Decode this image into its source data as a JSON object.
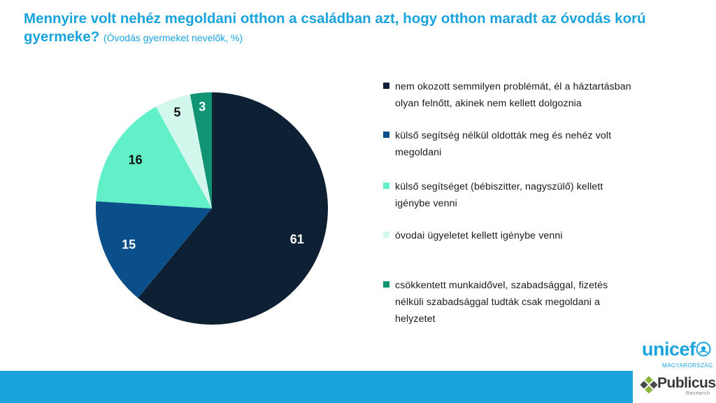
{
  "title": {
    "main": "Mennyire volt nehéz megoldani otthon a családban azt, hogy otthon maradt az óvodás korú gyermeke?",
    "subtitle": "(Óvodás gyermeket nevelők, %)"
  },
  "chart_data": {
    "type": "pie",
    "slices": [
      {
        "label": "nem okozott semmilyen problémát, él a háztartásban olyan felnőtt, akinek nem kellett dolgoznia",
        "value": 61,
        "display": "61",
        "color": "#0e2033",
        "text_color": "#ffffff"
      },
      {
        "label": "külső segítség nélkül oldották meg és nehéz volt megoldani",
        "value": 15,
        "display": "15",
        "color": "#0b4f8a",
        "text_color": "#ffffff"
      },
      {
        "label": "külső segítséget (bébiszitter, nagyszülő) kellett igénybe venni",
        "value": 16,
        "display": "16",
        "color": "#62f0c8",
        "text_color": "#111111"
      },
      {
        "label": "óvodai ügyeletet kellett igénybe venni",
        "value": 5,
        "display": "5",
        "color": "#d3f7ec",
        "text_color": "#111111"
      },
      {
        "label": "csökkentett munkaidővel, szabadsággal, fizetés nélküli szabadsággal tudták csak megoldani a helyzetet",
        "value": 3,
        "display": "3",
        "color": "#119474",
        "text_color": "#ffffff"
      }
    ],
    "legend_position": "right",
    "start_angle_deg": 0,
    "direction": "clockwise"
  },
  "legend": {
    "items": [
      "nem okozott semmilyen problémát, él a háztartásban olyan felnőtt, akinek nem kellett dolgoznia",
      "külső segítség nélkül oldották meg és nehéz volt megoldani",
      "külső segítséget (bébiszitter, nagyszülő) kellett igénybe venni",
      "óvodai ügyeletet kellett igénybe venni",
      "csökkentett munkaidővel, szabadsággal, fizetés nélküli szabadsággal tudták csak megoldani a helyzetet"
    ]
  },
  "logos": {
    "unicef": "unicef",
    "unicef_country": "MAGYARORSZÁG",
    "publicus": "Publicus",
    "publicus_sub": "Research"
  },
  "colors": {
    "accent": "#1aa3dc",
    "footer": "#1aa3dc"
  }
}
